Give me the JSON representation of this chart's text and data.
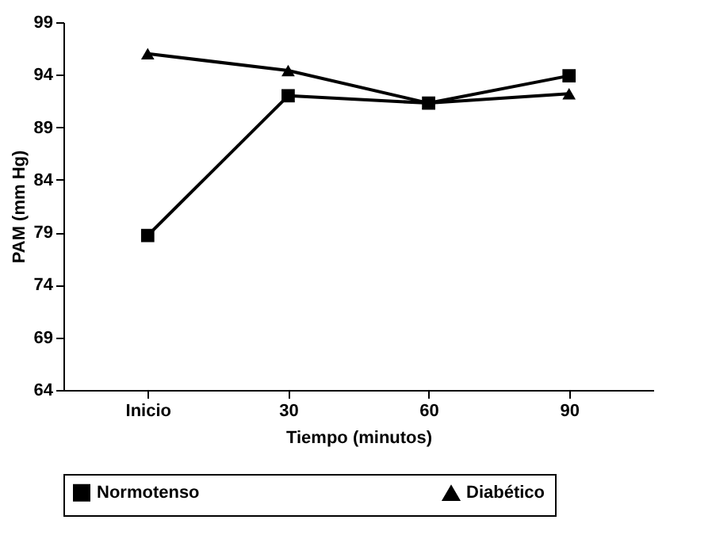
{
  "chart_data": {
    "type": "line",
    "xlabel": "Tiempo (minutos)",
    "ylabel": "PAM (mm Hg)",
    "categories": [
      "Inicio",
      "30",
      "60",
      "90"
    ],
    "series": [
      {
        "name": "Normotenso",
        "color": "#000000",
        "marker": "square",
        "values": [
          78.7,
          92.0,
          91.3,
          93.9
        ]
      },
      {
        "name": "Diabético",
        "color": "#000000",
        "marker": "triangle",
        "values": [
          96.0,
          94.4,
          91.3,
          92.2
        ]
      }
    ],
    "ylim": [
      64,
      99
    ],
    "yticks": [
      64,
      69,
      74,
      79,
      84,
      89,
      94,
      99
    ],
    "grid": false,
    "legend": "bottom",
    "line_style": "solid"
  }
}
